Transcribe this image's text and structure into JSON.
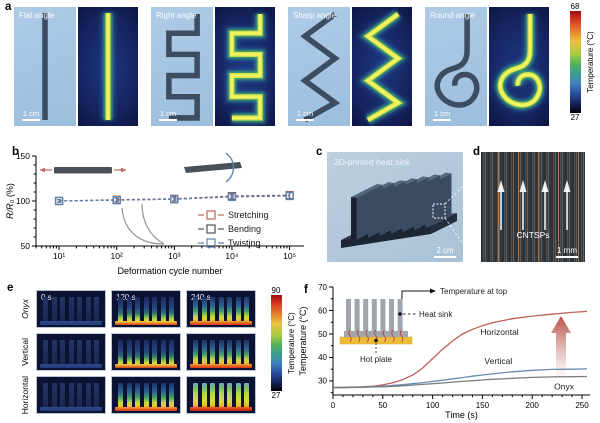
{
  "panel_a": {
    "label": "a",
    "samples": [
      {
        "title": "Flat angle",
        "scale_bar": "1 cm",
        "shape": "flat"
      },
      {
        "title": "Right angle",
        "scale_bar": "1 cm",
        "shape": "right"
      },
      {
        "title": "Sharp angle",
        "scale_bar": "1 cm",
        "shape": "sharp"
      },
      {
        "title": "Round angle",
        "scale_bar": "1 cm",
        "shape": "round"
      }
    ],
    "colorbar": {
      "max": "68",
      "min": "27",
      "label": "Temperature (°C)"
    }
  },
  "panel_b": {
    "label": "b"
  },
  "panel_c": {
    "label": "c",
    "caption": "3D-printed heat sink",
    "scale_bar": "2 cm"
  },
  "panel_d": {
    "label": "d",
    "caption": "CNTSPs",
    "scale_bar": "1 mm"
  },
  "panel_e": {
    "label": "e",
    "times": [
      "0 s",
      "120 s",
      "240 s"
    ],
    "rows": [
      {
        "name": "Onyx",
        "italic": true,
        "levels": [
          0,
          1,
          2
        ]
      },
      {
        "name": "Vertical",
        "italic": false,
        "levels": [
          0,
          1,
          2
        ]
      },
      {
        "name": "Horizontal",
        "italic": false,
        "levels": [
          0,
          2,
          3
        ]
      }
    ],
    "colorbar": {
      "max": "90",
      "min": "27",
      "label": "Temperature (°C)"
    }
  },
  "panel_f": {
    "label": "f",
    "annotations": {
      "top": "Temperature at top",
      "sink": "Heat sink",
      "plate": "Hot plate"
    }
  },
  "chart_data": [
    {
      "id": "resistance_vs_deformation",
      "panel": "b",
      "type": "scatter",
      "xlabel": "Deformation cycle number",
      "ylabel": "R/R₀ (%)",
      "x_scale": "log",
      "x": [
        10,
        100,
        1000,
        10000,
        100000
      ],
      "x_tick_labels": [
        "10¹",
        "10²",
        "10³",
        "10⁴",
        "10⁵"
      ],
      "ylim": [
        50,
        150
      ],
      "y_ticks": [
        50,
        100,
        150
      ],
      "grid": false,
      "line_style": "dashed",
      "marker": "open-square",
      "error_bars": [
        1.5,
        1.8,
        2.0,
        2.5,
        3.5
      ],
      "legend_position": "lower-right",
      "series": [
        {
          "name": "Stretching",
          "color": "#c1645a",
          "values": [
            100,
            101.5,
            102.5,
            105.5,
            106.5
          ]
        },
        {
          "name": "Bending",
          "color": "#4d5258",
          "values": [
            100,
            101.0,
            102.0,
            105.0,
            106.0
          ]
        },
        {
          "name": "Twisting",
          "color": "#5b84b1",
          "values": [
            100,
            101.0,
            102.0,
            104.5,
            105.5
          ]
        }
      ]
    },
    {
      "id": "heat_sink_top_temperature",
      "panel": "f",
      "type": "line",
      "xlabel": "Time (s)",
      "ylabel": "Temperature (°C)",
      "xlim": [
        0,
        258
      ],
      "x_ticks": [
        0,
        50,
        100,
        150,
        200,
        250
      ],
      "ylim": [
        24,
        70
      ],
      "y_ticks": [
        30,
        40,
        50,
        60,
        70
      ],
      "grid": false,
      "legend_position": "inline-labels",
      "x_common": [
        0,
        10,
        20,
        30,
        40,
        50,
        60,
        70,
        80,
        90,
        100,
        110,
        120,
        130,
        140,
        150,
        160,
        180,
        200,
        220,
        240,
        255
      ],
      "series": [
        {
          "name": "Horizontal",
          "color": "#bf6056",
          "label_at": [
            148,
            49.5
          ],
          "y": [
            27.3,
            27.3,
            27.4,
            27.5,
            27.8,
            28.3,
            29.2,
            30.5,
            32.5,
            35.5,
            39.5,
            43.5,
            47,
            50,
            52,
            53.5,
            54.8,
            56.5,
            57.6,
            58.4,
            59.2,
            59.6
          ]
        },
        {
          "name": "Vertical",
          "color": "#6b8cae",
          "label_at": [
            152,
            37.2
          ],
          "y": [
            27.2,
            27.2,
            27.3,
            27.4,
            27.6,
            27.8,
            28.1,
            28.4,
            28.8,
            29.3,
            29.8,
            30.3,
            30.9,
            31.4,
            32,
            32.5,
            33,
            33.9,
            34.5,
            34.9,
            35,
            35.1
          ]
        },
        {
          "name": "Onyx",
          "color": "#7a7f84",
          "label_at": [
            222,
            26.4
          ],
          "y": [
            27.1,
            27.1,
            27.2,
            27.3,
            27.4,
            27.5,
            27.7,
            27.9,
            28.2,
            28.5,
            28.8,
            29.1,
            29.5,
            29.8,
            30.1,
            30.4,
            30.7,
            31.1,
            31.5,
            31.7,
            31.8,
            31.9
          ]
        }
      ]
    }
  ]
}
